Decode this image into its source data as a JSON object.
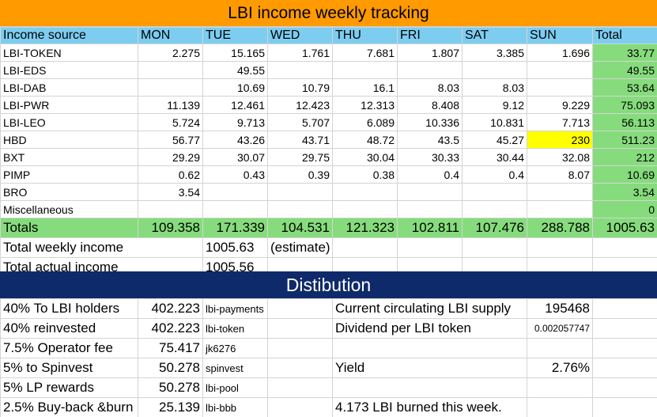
{
  "title": "LBI income weekly tracking",
  "header": [
    "Income source",
    "MON",
    "TUE",
    "WED",
    "THU",
    "FRI",
    "SAT",
    "SUN",
    "Total"
  ],
  "rows": [
    {
      "source": "LBI-TOKEN",
      "mon": "2.275",
      "tue": "15.165",
      "wed": "1.761",
      "thu": "7.681",
      "fri": "1.807",
      "sat": "3.385",
      "sun": "1.696",
      "total": "33.77"
    },
    {
      "source": "LBI-EDS",
      "mon": "",
      "tue": "49.55",
      "wed": "",
      "thu": "",
      "fri": "",
      "sat": "",
      "sun": "",
      "total": "49.55"
    },
    {
      "source": "LBI-DAB",
      "mon": "",
      "tue": "10.69",
      "wed": "10.79",
      "thu": "16.1",
      "fri": "8.03",
      "sat": "8.03",
      "sun": "",
      "total": "53.64"
    },
    {
      "source": "LBI-PWR",
      "mon": "11.139",
      "tue": "12.461",
      "wed": "12.423",
      "thu": "12.313",
      "fri": "8.408",
      "sat": "9.12",
      "sun": "9.229",
      "total": "75.093"
    },
    {
      "source": "LBI-LEO",
      "mon": "5.724",
      "tue": "9.713",
      "wed": "5.707",
      "thu": "6.089",
      "fri": "10.336",
      "sat": "10.831",
      "sun": "7.713",
      "total": "56.113"
    },
    {
      "source": "HBD",
      "mon": "56.77",
      "tue": "43.26",
      "wed": "43.71",
      "thu": "48.72",
      "fri": "43.5",
      "sat": "45.27",
      "sun": "230",
      "total": "511.23"
    },
    {
      "source": "BXT",
      "mon": "29.29",
      "tue": "30.07",
      "wed": "29.75",
      "thu": "30.04",
      "fri": "30.33",
      "sat": "30.44",
      "sun": "32.08",
      "total": "212"
    },
    {
      "source": "PIMP",
      "mon": "0.62",
      "tue": "0.43",
      "wed": "0.39",
      "thu": "0.38",
      "fri": "0.4",
      "sat": "0.4",
      "sun": "8.07",
      "total": "10.69"
    },
    {
      "source": "BRO",
      "mon": "3.54",
      "tue": "",
      "wed": "",
      "thu": "",
      "fri": "",
      "sat": "",
      "sun": "",
      "total": "3.54"
    },
    {
      "source": "Miscellaneous",
      "mon": "",
      "tue": "",
      "wed": "",
      "thu": "",
      "fri": "",
      "sat": "",
      "sun": "",
      "total": "0"
    }
  ],
  "totals": {
    "label": "Totals",
    "mon": "109.358",
    "tue": "171.339",
    "wed": "104.531",
    "thu": "121.323",
    "fri": "102.811",
    "sat": "107.476",
    "sun": "288.788",
    "total": "1005.63"
  },
  "summary": {
    "weekly_label": "Total weekly income",
    "weekly_value": "1005.63",
    "weekly_note": "(estimate)",
    "actual_label": "Total actual income",
    "actual_value": "1005.56"
  },
  "highlight_color": "#ffff00",
  "distribution": {
    "title": "Distibution",
    "rows": [
      {
        "label": "40% To LBI holders",
        "amount": "402.223",
        "account": "lbi-payments",
        "info_label": "Current circulating LBI supply",
        "info_value": "195468"
      },
      {
        "label": "40% reinvested",
        "amount": "402.223",
        "account": "lbi-token",
        "info_label": "Dividend per LBI token",
        "info_value": "0.002057747"
      },
      {
        "label": "7.5% Operator fee",
        "amount": "75.417",
        "account": "jk6276",
        "info_label": "",
        "info_value": ""
      },
      {
        "label": "5% to Spinvest",
        "amount": "50.278",
        "account": "spinvest",
        "info_label": "Yield",
        "info_value": "2.76%"
      },
      {
        "label": "5% LP rewards",
        "amount": "50.278",
        "account": "lbi-pool",
        "info_label": "",
        "info_value": ""
      },
      {
        "label": "2.5% Buy-back &burn",
        "amount": "25.139",
        "account": "lbi-bbb",
        "info_label": "4.173 LBI burned this week.",
        "info_value": ""
      }
    ]
  },
  "colors": {
    "title_bg": "#ff9a00",
    "header_bg": "#7ccdf0",
    "total_bg": "#86dc7c",
    "dist_bg": "#0f2a6a"
  }
}
